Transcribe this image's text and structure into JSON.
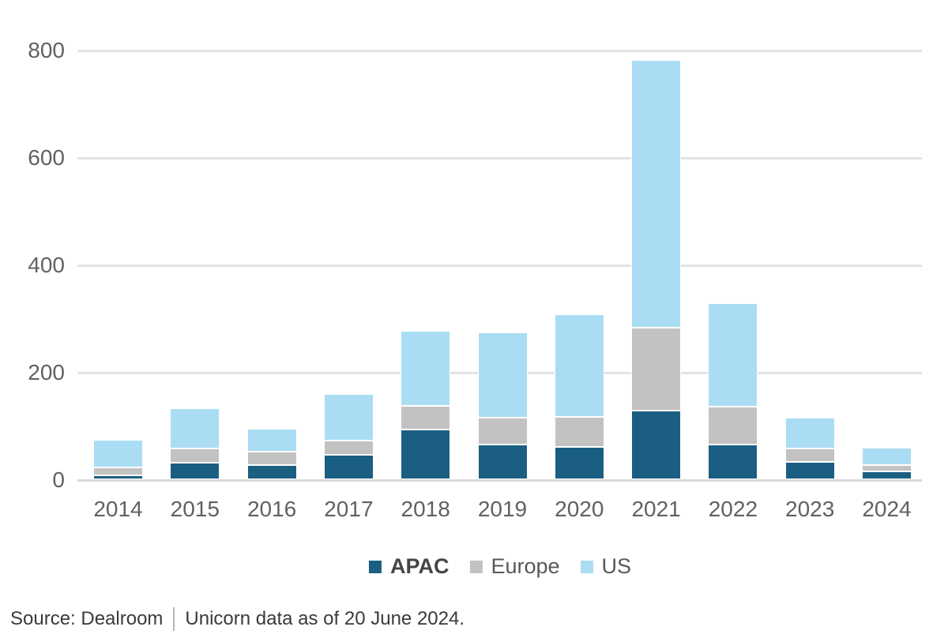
{
  "chart_data": {
    "type": "bar",
    "stacked": true,
    "title": "",
    "xlabel": "",
    "ylabel": "",
    "categories": [
      "2014",
      "2015",
      "2016",
      "2017",
      "2018",
      "2019",
      "2020",
      "2021",
      "2022",
      "2023",
      "2024"
    ],
    "series": [
      {
        "name": "APAC",
        "color": "#1a5f82",
        "values": [
          7,
          31,
          27,
          45,
          92,
          65,
          61,
          128,
          65,
          33,
          14
        ]
      },
      {
        "name": "Europe",
        "color": "#c2c2c3",
        "values": [
          15,
          26,
          24,
          27,
          45,
          50,
          55,
          155,
          70,
          24,
          13
        ]
      },
      {
        "name": "US",
        "color": "#aaddf4",
        "values": [
          52,
          75,
          43,
          87,
          140,
          159,
          191,
          498,
          193,
          58,
          32
        ]
      }
    ],
    "totals": [
      74,
      132,
      94,
      159,
      277,
      274,
      307,
      781,
      328,
      115,
      59
    ],
    "ylim": [
      0,
      800
    ],
    "yticks": [
      0,
      200,
      400,
      600,
      800
    ],
    "grid": true,
    "gridline_color": "#e3e3e3",
    "axis_line_color": "#d9d9d9",
    "tick_label_color": "#5f6165",
    "legend_position": "bottom"
  },
  "legend": {
    "items": [
      {
        "label": "APAC",
        "color": "#1a5f82",
        "bold": true
      },
      {
        "label": "Europe",
        "color": "#c2c2c3",
        "bold": false
      },
      {
        "label": "US",
        "color": "#aaddf4",
        "bold": false
      }
    ]
  },
  "source": {
    "prefix": "Source: Dealroom",
    "separator": "|",
    "note": "Unicorn data as of 20 June 2024."
  }
}
